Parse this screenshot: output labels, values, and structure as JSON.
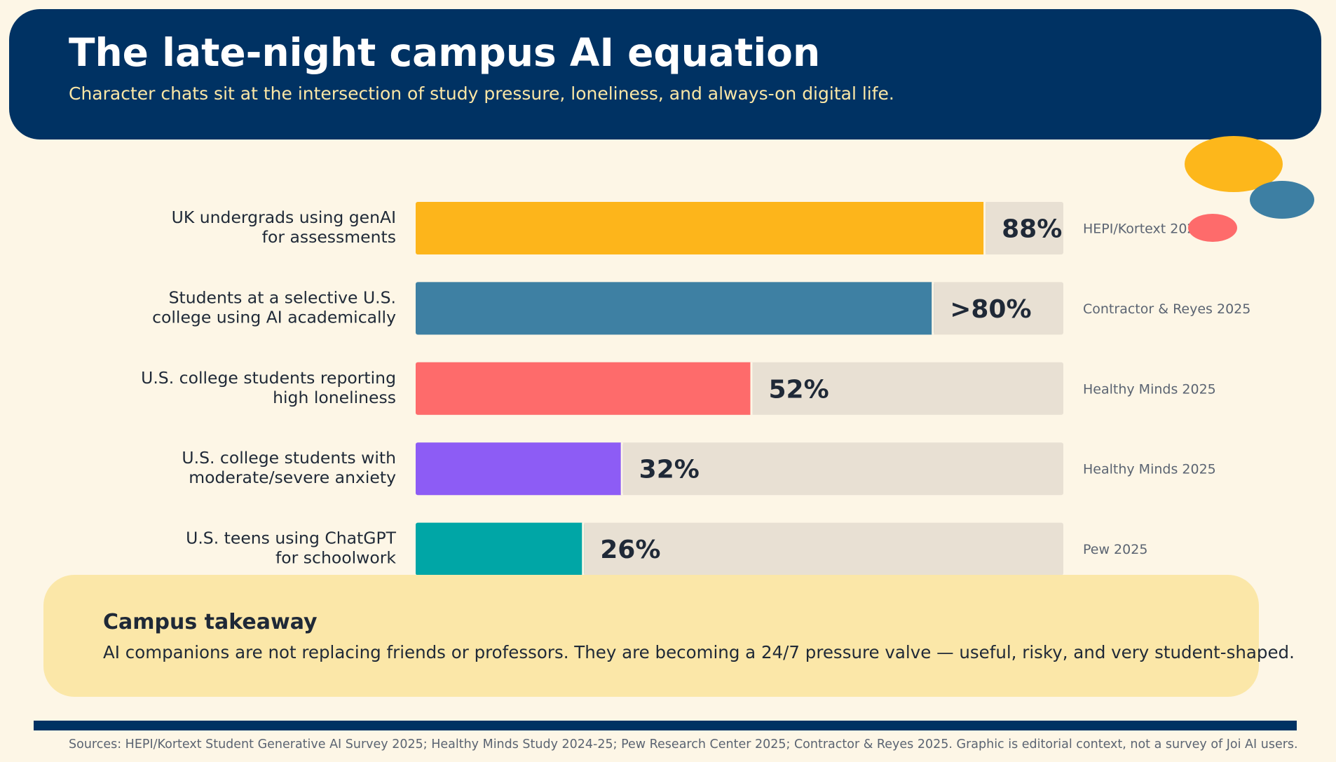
{
  "header": {
    "title": "The late-night campus AI equation",
    "subtitle": "Character chats sit at the intersection of study pressure, loneliness, and always-on digital life."
  },
  "colors": {
    "navy": "#003263",
    "background": "#fdf6e6",
    "track": "#e8e0d3",
    "takeaway_bg": "#fbe7a8",
    "dot_gold": "#fdb71b",
    "dot_blue": "#3d7fa3",
    "dot_coral": "#fe6b6b"
  },
  "chart_data": {
    "type": "bar",
    "orientation": "horizontal",
    "xlim": [
      0,
      100
    ],
    "categories": [
      [
        "UK undergrads using genAI",
        "for assessments"
      ],
      [
        "Students at a selective U.S.",
        "college using AI academically"
      ],
      [
        "U.S. college students reporting",
        "high loneliness"
      ],
      [
        "U.S. college students with",
        "moderate/severe anxiety"
      ],
      [
        "U.S. teens using ChatGPT",
        "for schoolwork"
      ]
    ],
    "values": [
      88,
      80,
      52,
      32,
      26
    ],
    "value_labels": [
      "88%",
      ">80%",
      "52%",
      "32%",
      "26%"
    ],
    "sources": [
      "HEPI/Kortext 2025",
      "Contractor & Reyes 2025",
      "Healthy Minds 2025",
      "Healthy Minds 2025",
      "Pew 2025"
    ],
    "colors": [
      "#fdb51b",
      "#3e80a3",
      "#fe6b6b",
      "#8d5cf5",
      "#00a6a6"
    ]
  },
  "takeaway": {
    "title": "Campus takeaway",
    "body": "AI companions are not replacing friends or professors. They are becoming a 24/7 pressure valve — useful, risky, and very student-shaped."
  },
  "footer": {
    "sources": "Sources: HEPI/Kortext Student Generative AI Survey 2025; Healthy Minds Study 2024-25; Pew Research Center 2025; Contractor & Reyes 2025. Graphic is editorial context, not a survey of Joi AI users."
  }
}
